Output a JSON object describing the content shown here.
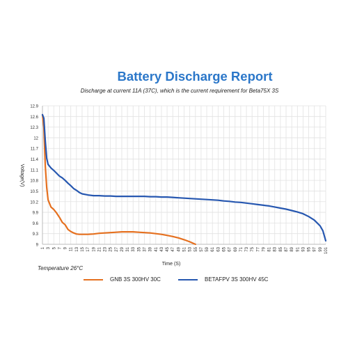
{
  "title": "Battery Discharge Report",
  "subtitle": "Discharge at current 11A (37C), which is the current requirement for Beta75X 3S",
  "note": "Temperature 26°C",
  "colors": {
    "gnb": "#e5701f",
    "betafpv": "#2657b0",
    "grid": "#e2e2e2",
    "axis": "#bbbbbb"
  },
  "chart_data": {
    "type": "line",
    "xlabel": "Time (S)",
    "ylabel": "Voltage(V)",
    "ylim": [
      9,
      12.9
    ],
    "yticks": [
      9,
      9.3,
      9.6,
      9.9,
      10.2,
      10.5,
      10.8,
      11.1,
      11.4,
      11.7,
      12,
      12.3,
      12.6,
      12.9
    ],
    "xlim": [
      1,
      101
    ],
    "xticks": [
      1,
      3,
      5,
      7,
      9,
      11,
      13,
      15,
      17,
      19,
      21,
      23,
      25,
      27,
      29,
      31,
      33,
      35,
      37,
      39,
      41,
      43,
      45,
      47,
      49,
      51,
      53,
      55,
      57,
      59,
      61,
      63,
      65,
      67,
      69,
      71,
      73,
      75,
      77,
      79,
      81,
      83,
      85,
      87,
      89,
      91,
      93,
      95,
      97,
      99,
      101
    ],
    "grid": true,
    "legend": "bottom",
    "series": [
      {
        "name": "GNB 3S 300HV 30C",
        "x": [
          1,
          1.5,
          2,
          2.5,
          3,
          4,
          5,
          6,
          7,
          8,
          9,
          10,
          11,
          12,
          13,
          14,
          15,
          17,
          19,
          21,
          23,
          25,
          27,
          29,
          31,
          33,
          35,
          37,
          39,
          41,
          43,
          45,
          47,
          49,
          51,
          53,
          55
        ],
        "values": [
          12.65,
          12.3,
          11.2,
          10.6,
          10.25,
          10.05,
          9.98,
          9.88,
          9.76,
          9.62,
          9.55,
          9.42,
          9.36,
          9.32,
          9.29,
          9.28,
          9.28,
          9.28,
          9.29,
          9.31,
          9.32,
          9.33,
          9.34,
          9.35,
          9.35,
          9.35,
          9.34,
          9.33,
          9.32,
          9.3,
          9.28,
          9.25,
          9.22,
          9.18,
          9.13,
          9.07,
          9.0
        ]
      },
      {
        "name": "BETAFPV 3S 300HV 45C",
        "x": [
          1,
          1.5,
          2,
          2.5,
          3,
          4,
          5,
          6,
          7,
          8,
          9,
          10,
          11,
          12,
          13,
          14,
          15,
          17,
          19,
          21,
          23,
          25,
          27,
          29,
          31,
          33,
          35,
          37,
          39,
          41,
          43,
          45,
          47,
          49,
          51,
          53,
          55,
          57,
          59,
          61,
          63,
          65,
          67,
          69,
          71,
          73,
          75,
          77,
          79,
          81,
          83,
          85,
          87,
          89,
          91,
          93,
          95,
          97,
          99,
          100,
          101
        ],
        "values": [
          12.65,
          12.55,
          11.9,
          11.42,
          11.25,
          11.15,
          11.08,
          11.0,
          10.92,
          10.87,
          10.8,
          10.72,
          10.65,
          10.57,
          10.52,
          10.46,
          10.42,
          10.39,
          10.37,
          10.37,
          10.36,
          10.36,
          10.35,
          10.35,
          10.35,
          10.35,
          10.35,
          10.35,
          10.34,
          10.34,
          10.33,
          10.33,
          10.32,
          10.31,
          10.3,
          10.29,
          10.28,
          10.27,
          10.26,
          10.25,
          10.24,
          10.22,
          10.21,
          10.19,
          10.18,
          10.16,
          10.14,
          10.12,
          10.1,
          10.08,
          10.05,
          10.02,
          9.99,
          9.95,
          9.91,
          9.86,
          9.78,
          9.68,
          9.52,
          9.38,
          9.1
        ]
      }
    ]
  }
}
